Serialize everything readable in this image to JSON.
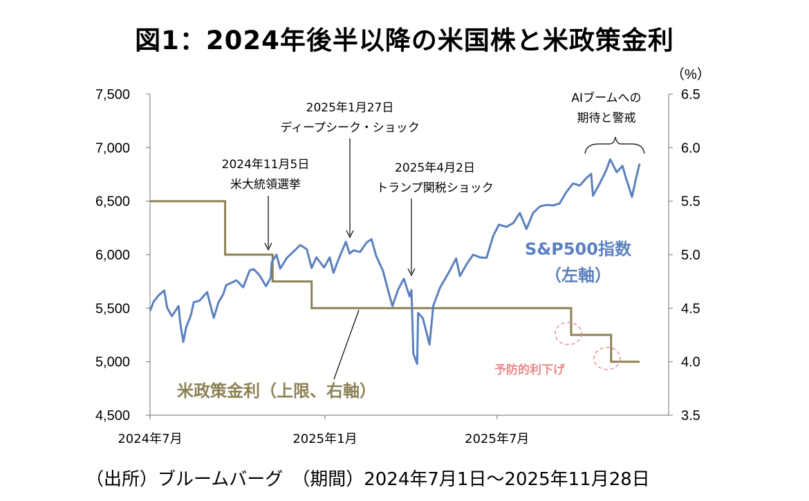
{
  "title": "図1：2024年後半以降の米国株と米政策金利",
  "source": "（出所）ブルームバーグ　（期間）2024年7月1日～2025年11月28日",
  "colors": {
    "sp500": "#5b80bd",
    "rate": "#8c8154",
    "pink": "#e88a8a"
  },
  "chart_data": {
    "type": "line",
    "x_range": [
      "2024-07-01",
      "2025-11-28"
    ],
    "x_ticks": [
      {
        "date": "2024-07-01",
        "label": "2024年7月"
      },
      {
        "date": "2025-01-01",
        "label": "2025年1月"
      },
      {
        "date": "2025-07-01",
        "label": "2025年7月"
      }
    ],
    "y_left": {
      "min": 4500,
      "max": 7500,
      "ticks": [
        "4,500",
        "5,000",
        "5,500",
        "6,000",
        "6,500",
        "7,000",
        "7,500"
      ]
    },
    "y_right": {
      "min": 3.5,
      "max": 6.5,
      "unit": "（%）",
      "ticks": [
        "3.5",
        "4.0",
        "4.5",
        "5.0",
        "5.5",
        "6.0",
        "6.5"
      ]
    },
    "grid": false,
    "series": [
      {
        "name": "S&P500指数",
        "axis_label": "（左軸）",
        "axis": "left",
        "points": [
          [
            "2024-07-01",
            5475
          ],
          [
            "2024-07-05",
            5565
          ],
          [
            "2024-07-10",
            5620
          ],
          [
            "2024-07-16",
            5665
          ],
          [
            "2024-07-19",
            5505
          ],
          [
            "2024-07-24",
            5425
          ],
          [
            "2024-07-31",
            5520
          ],
          [
            "2024-08-02",
            5345
          ],
          [
            "2024-08-05",
            5185
          ],
          [
            "2024-08-08",
            5320
          ],
          [
            "2024-08-13",
            5435
          ],
          [
            "2024-08-16",
            5555
          ],
          [
            "2024-08-22",
            5570
          ],
          [
            "2024-08-30",
            5650
          ],
          [
            "2024-09-06",
            5410
          ],
          [
            "2024-09-11",
            5555
          ],
          [
            "2024-09-16",
            5630
          ],
          [
            "2024-09-19",
            5715
          ],
          [
            "2024-09-30",
            5760
          ],
          [
            "2024-10-07",
            5695
          ],
          [
            "2024-10-14",
            5855
          ],
          [
            "2024-10-18",
            5865
          ],
          [
            "2024-10-24",
            5810
          ],
          [
            "2024-10-31",
            5705
          ],
          [
            "2024-11-05",
            5785
          ],
          [
            "2024-11-06",
            5930
          ],
          [
            "2024-11-11",
            6000
          ],
          [
            "2024-11-15",
            5870
          ],
          [
            "2024-11-22",
            5970
          ],
          [
            "2024-11-29",
            6030
          ],
          [
            "2024-12-06",
            6090
          ],
          [
            "2024-12-13",
            6050
          ],
          [
            "2024-12-18",
            5875
          ],
          [
            "2024-12-23",
            5975
          ],
          [
            "2024-12-31",
            5880
          ],
          [
            "2025-01-06",
            5975
          ],
          [
            "2025-01-10",
            5830
          ],
          [
            "2025-01-15",
            5950
          ],
          [
            "2025-01-23",
            6120
          ],
          [
            "2025-01-27",
            6010
          ],
          [
            "2025-01-31",
            6040
          ],
          [
            "2025-02-07",
            6025
          ],
          [
            "2025-02-14",
            6115
          ],
          [
            "2025-02-19",
            6145
          ],
          [
            "2025-02-24",
            5985
          ],
          [
            "2025-03-03",
            5850
          ],
          [
            "2025-03-10",
            5615
          ],
          [
            "2025-03-13",
            5520
          ],
          [
            "2025-03-19",
            5675
          ],
          [
            "2025-03-25",
            5775
          ],
          [
            "2025-03-31",
            5610
          ],
          [
            "2025-04-02",
            5670
          ],
          [
            "2025-04-04",
            5075
          ],
          [
            "2025-04-08",
            4980
          ],
          [
            "2025-04-09",
            5455
          ],
          [
            "2025-04-14",
            5405
          ],
          [
            "2025-04-21",
            5160
          ],
          [
            "2025-04-25",
            5525
          ],
          [
            "2025-05-02",
            5690
          ],
          [
            "2025-05-12",
            5845
          ],
          [
            "2025-05-19",
            5965
          ],
          [
            "2025-05-23",
            5800
          ],
          [
            "2025-05-30",
            5910
          ],
          [
            "2025-06-06",
            6000
          ],
          [
            "2025-06-13",
            5975
          ],
          [
            "2025-06-20",
            5970
          ],
          [
            "2025-06-27",
            6175
          ],
          [
            "2025-07-03",
            6280
          ],
          [
            "2025-07-11",
            6260
          ],
          [
            "2025-07-18",
            6295
          ],
          [
            "2025-07-25",
            6390
          ],
          [
            "2025-08-01",
            6240
          ],
          [
            "2025-08-08",
            6390
          ],
          [
            "2025-08-15",
            6450
          ],
          [
            "2025-08-22",
            6465
          ],
          [
            "2025-08-29",
            6460
          ],
          [
            "2025-09-05",
            6480
          ],
          [
            "2025-09-12",
            6585
          ],
          [
            "2025-09-19",
            6665
          ],
          [
            "2025-09-26",
            6645
          ],
          [
            "2025-10-03",
            6715
          ],
          [
            "2025-10-08",
            6755
          ],
          [
            "2025-10-10",
            6550
          ],
          [
            "2025-10-17",
            6665
          ],
          [
            "2025-10-24",
            6790
          ],
          [
            "2025-10-28",
            6890
          ],
          [
            "2025-11-04",
            6770
          ],
          [
            "2025-11-10",
            6830
          ],
          [
            "2025-11-13",
            6735
          ],
          [
            "2025-11-20",
            6540
          ],
          [
            "2025-11-24",
            6705
          ],
          [
            "2025-11-28",
            6850
          ]
        ]
      },
      {
        "name": "米政策金利",
        "axis_label": "（上限、右軸）",
        "axis": "right",
        "step": true,
        "points": [
          [
            "2024-07-01",
            5.5
          ],
          [
            "2024-09-18",
            5.0
          ],
          [
            "2024-11-07",
            4.75
          ],
          [
            "2024-12-18",
            4.5
          ],
          [
            "2025-09-17",
            4.25
          ],
          [
            "2025-10-29",
            4.0
          ],
          [
            "2025-11-28",
            4.0
          ]
        ]
      }
    ],
    "annotations": [
      {
        "date": "2024-11-05",
        "lines": [
          "2024年11月5日",
          "米大統領選挙"
        ]
      },
      {
        "date": "2025-01-27",
        "lines": [
          "2025年1月27日",
          "ディープシーク・ショック"
        ]
      },
      {
        "date": "2025-04-02",
        "lines": [
          "2025年4月2日",
          "トランプ関税ショック"
        ]
      },
      {
        "lines": [
          "AIブームへの",
          "期待と警戒"
        ]
      },
      {
        "text": "予防的利下げ"
      }
    ]
  }
}
